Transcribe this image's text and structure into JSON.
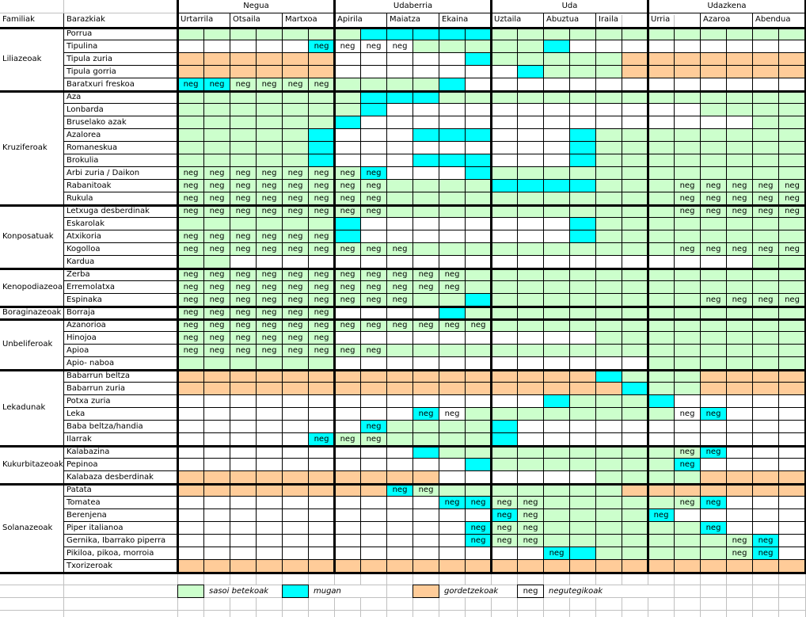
{
  "header": {
    "family_col": "Familiak",
    "vegetable_col": "Barazkiak",
    "seasons": [
      "Negua",
      "Udaberria",
      "Uda",
      "Udazkena"
    ],
    "months": [
      "Urtarrila",
      "Otsaila",
      "Martxoa",
      "Apirila",
      "Maiatza",
      "Ekaina",
      "Uztaila",
      "Abuztua",
      "Iraila",
      "Urria",
      "Azaroa",
      "Abendua"
    ]
  },
  "neg_label": "neg",
  "colors": {
    "G": "#ccffcc",
    "C": "#00ffff",
    "O": "#ffcc99",
    "W": "#ffffff"
  },
  "legend": [
    {
      "key": "G",
      "label": "sasoi betekoak"
    },
    {
      "key": "C",
      "label": "mugan"
    },
    {
      "key": "O",
      "label": "gordetzekoak"
    },
    {
      "key": "N",
      "box_text": "neg",
      "label": "negutegikoak"
    }
  ],
  "families": [
    {
      "name": "Liliazeoak",
      "count": 5
    },
    {
      "name": "Kruziferoak",
      "count": 9
    },
    {
      "name": "Konposatuak",
      "count": 5
    },
    {
      "name": "Kenopodiazeoak",
      "count": 3
    },
    {
      "name": "Boraginazeoak",
      "count": 1
    },
    {
      "name": "Unbeliferoak",
      "count": 4
    },
    {
      "name": "Lekadunak",
      "count": 6
    },
    {
      "name": "Kukurbitazeoak",
      "count": 3
    },
    {
      "name": "Solanazeoak",
      "count": 7
    }
  ],
  "rows": [
    {
      "name": "Porrua",
      "cells": "GGGGGGGCCCCCGGGGGGGGGGGG",
      "neg": []
    },
    {
      "name": "Tipulina",
      "cells": "WWWWWCWWWGGGGGCWWWWWWWWW",
      "neg": [
        5,
        6,
        7,
        8
      ]
    },
    {
      "name": "Tipula zuria",
      "cells": "OOOOOOWWWWWCGGGGGOOOOOOO",
      "neg": []
    },
    {
      "name": "Tipula gorria",
      "cells": "OOOOOOWWWWWWWCGGGOOOOOOO",
      "neg": []
    },
    {
      "name": "Baratxuri freskoa",
      "cells": "CCGGGGGGGGCWWWWWWWWWWWWW",
      "neg": [
        0,
        1,
        2,
        3,
        4,
        5
      ]
    },
    {
      "name": "Aza",
      "cells": "GGGGGGGCCCGGGGGGGGGGGGGG",
      "neg": []
    },
    {
      "name": "Lonbarda",
      "cells": "GGGGGGGCWWWWWWWWWWWWGGGG",
      "neg": []
    },
    {
      "name": "Bruselako azak",
      "cells": "GGGGGGCWWWWWWWWWWWWWWWGG",
      "neg": []
    },
    {
      "name": "Azalorea",
      "cells": "GGGGGCWWWCCCWWWCGGGGGGGG",
      "neg": []
    },
    {
      "name": "Romaneskua",
      "cells": "GGGGGCWWWWWWWWWCGGGGGGGG",
      "neg": []
    },
    {
      "name": "Brokulia",
      "cells": "GGGGGCWWWCCCWWWCGGGGGGGG",
      "neg": []
    },
    {
      "name": "Arbi zuria / Daikon",
      "cells": "GGGGGGGCWWWCGGGGGGGGGGGG",
      "neg": [
        0,
        1,
        2,
        3,
        4,
        5,
        6,
        7
      ]
    },
    {
      "name": "Rabanitoak",
      "cells": "GGGGGGGGGGGGCCCCGGGGGGGG",
      "neg": [
        0,
        1,
        2,
        3,
        4,
        5,
        6,
        7,
        19,
        20,
        21,
        22,
        23
      ]
    },
    {
      "name": "Rukula",
      "cells": "GGGGGGGGGGGGGGGGGGGGGGGG",
      "neg": [
        0,
        1,
        2,
        3,
        4,
        5,
        6,
        7,
        19,
        20,
        21,
        22,
        23
      ]
    },
    {
      "name": "Letxuga desberdinak",
      "cells": "GGGGGGGGGGGGGGGGGGGGGGGG",
      "neg": [
        0,
        1,
        2,
        3,
        4,
        5,
        6,
        7,
        19,
        20,
        21,
        22,
        23
      ]
    },
    {
      "name": "Eskarolak",
      "cells": "GGGGGGCWWWWWWWWCGGGGGGGG",
      "neg": []
    },
    {
      "name": "Atxikoria",
      "cells": "GGGGGGCWWWWWWWWCGGGGGGGG",
      "neg": [
        0,
        1,
        2,
        3,
        4,
        5
      ]
    },
    {
      "name": "Kogolloa",
      "cells": "GGGGGGGGGGGGGGGGGGGGGGGG",
      "neg": [
        0,
        1,
        2,
        3,
        4,
        5,
        6,
        7,
        8,
        19,
        20,
        21,
        22,
        23
      ]
    },
    {
      "name": "Kardua",
      "cells": "GGWWWWWWWWWWWWWWWWWWWWGG",
      "neg": []
    },
    {
      "name": "Zerba",
      "cells": "GGGGGGGGGGGGGGGGGGGGGGGG",
      "neg": [
        0,
        1,
        2,
        3,
        4,
        5,
        6,
        7,
        8,
        9,
        10
      ]
    },
    {
      "name": "Erremolatxa",
      "cells": "GGGGGGGGGGGGGGGGGGGGGGGG",
      "neg": [
        0,
        1,
        2,
        3,
        4,
        5,
        6,
        7,
        8,
        9,
        10
      ]
    },
    {
      "name": "Espinaka",
      "cells": "GGGGGGGGGGGCGGGGGGGGGGGG",
      "neg": [
        0,
        1,
        2,
        3,
        4,
        5,
        6,
        7,
        8,
        20,
        21,
        22,
        23
      ]
    },
    {
      "name": "Borraja",
      "cells": "GGGGGGWWWWCGGGGGGGGGGGGG",
      "neg": [
        0,
        1,
        2,
        3,
        4,
        5
      ]
    },
    {
      "name": "Azanorioa",
      "cells": "GGGGGGGGGGGGGGGGGGGGGGGG",
      "neg": [
        0,
        1,
        2,
        3,
        4,
        5,
        6,
        7,
        8,
        9,
        10,
        11
      ]
    },
    {
      "name": "Hinojoa",
      "cells": "GGGGGGWWWWWWWWWWGGGGGGGG",
      "neg": [
        0,
        1,
        2,
        3,
        4,
        5
      ]
    },
    {
      "name": "Apioa",
      "cells": "GGGGGGGGGGGGGGGGGGGGGGGG",
      "neg": [
        0,
        1,
        2,
        3,
        4,
        5,
        6,
        7
      ]
    },
    {
      "name": "Apio- naboa",
      "cells": "GGGGGGWWWWWWWWWWWWGGGGGG",
      "neg": []
    },
    {
      "name": "Babarrun beltza",
      "cells": "OOOOOOOOOOOOOOOOCGGGOOOO",
      "neg": []
    },
    {
      "name": "Babarrun zuria",
      "cells": "OOOOOOOOOOOOOOOOOCGGOOOO",
      "neg": []
    },
    {
      "name": "Potxa zuria",
      "cells": "WWWWWWWWWWWWWWCGGGCWWWWW",
      "neg": []
    },
    {
      "name": "Leka",
      "cells": "WWWWWWWWWCWGGGGGGGGWCWWW",
      "neg": [
        9,
        10,
        19,
        20
      ]
    },
    {
      "name": "Baba beltza/handia",
      "cells": "WWWWWWWCGGGGCWWWWWWWWWWW",
      "neg": [
        7
      ]
    },
    {
      "name": "Ilarrak",
      "cells": "WWWWWCGGGGGGCWWWWWWWWWWW",
      "neg": [
        5,
        6,
        7
      ]
    },
    {
      "name": "Kalabazina",
      "cells": "WWWWWWWWWCGGGGGGGGGGCWWW",
      "neg": [
        19,
        20
      ]
    },
    {
      "name": "Pepinoa",
      "cells": "WWWWWWWWWWWCGGGGGGGCWWWW",
      "neg": [
        19
      ]
    },
    {
      "name": "Kalabaza desberdinak",
      "cells": "OOOOOOOOOOWWWWWWGGGGOOOO",
      "neg": []
    },
    {
      "name": "Patata",
      "cells": "OOOOOOOOCGGGGGGGGOOOOOOO",
      "neg": [
        8,
        9
      ]
    },
    {
      "name": "Tomatea",
      "cells": "WWWWWWWWWWCCGGGGGGGGCWWW",
      "neg": [
        10,
        11,
        12,
        13,
        19,
        20
      ]
    },
    {
      "name": "Berenjena",
      "cells": "WWWWWWWWWWWWCGGGGGCWWWWW",
      "neg": [
        12,
        13,
        18
      ]
    },
    {
      "name": "Piper italianoa",
      "cells": "WWWWWWWWWWWCGGGGGGGGCWWW",
      "neg": [
        11,
        12,
        13,
        20
      ]
    },
    {
      "name": "Gernika, Ibarrako piperra",
      "cells": "WWWWWWWWWWWCGGGGGGGGGGCW",
      "neg": [
        11,
        12,
        13,
        21,
        22
      ]
    },
    {
      "name": "Pikiloa, pikoa, morroia",
      "cells": "WWWWWWWWWWWWWWCCGGGGGGCW",
      "neg": [
        14,
        21,
        22
      ]
    },
    {
      "name": "Txorizeroak",
      "cells": "OOOOOOOOOOOOOOOOOOOOOOOO",
      "neg": []
    }
  ]
}
